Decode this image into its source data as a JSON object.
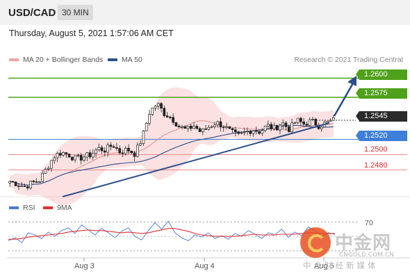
{
  "header": {
    "pair": "USD/CAD",
    "timeframe": "30 MIN",
    "datetime": "Thursday, August 5, 2021 1:57:06 AM CET"
  },
  "legend": {
    "bollinger_label": "MA 20 + Bollinger Bands",
    "ma50_label": "MA 50",
    "credit": "Research © 2021 Trading Central"
  },
  "colors": {
    "green_level": "#4fa11a",
    "blue_level": "#3d7fd9",
    "red_level": "#e88a8a",
    "bollinger": "#f3a3a3",
    "ma50": "#2c4f8a",
    "trendline": "#2c4f8a",
    "rsi": "#4a78d8",
    "rsi_ma": "#e03030"
  },
  "chart_data": [
    {
      "type": "candlestick",
      "instrument": "USD/CAD",
      "timeframe": "30 MIN",
      "x_tick_labels": [
        "Aug 3",
        "Aug 4",
        "Aug 5"
      ],
      "levels": [
        {
          "value": 1.26,
          "label": "1.2600",
          "kind": "target"
        },
        {
          "value": 1.2575,
          "label": "1.2575",
          "kind": "target"
        },
        {
          "value": 1.2545,
          "label": "1.2545",
          "kind": "current"
        },
        {
          "value": 1.252,
          "label": "1.2520",
          "kind": "pivot"
        },
        {
          "value": 1.25,
          "label": "1.2500",
          "kind": "support"
        },
        {
          "value": 1.248,
          "label": "1.2480",
          "kind": "support"
        }
      ],
      "ylim": [
        1.2445,
        1.2615
      ],
      "close_path": [
        1.2465,
        1.2462,
        1.2458,
        1.2463,
        1.2466,
        1.2482,
        1.2498,
        1.2503,
        1.25,
        1.2494,
        1.2497,
        1.25,
        1.2508,
        1.2506,
        1.2513,
        1.2503,
        1.2507,
        1.2501,
        1.2522,
        1.2556,
        1.2567,
        1.2554,
        1.2548,
        1.2537,
        1.2532,
        1.2538,
        1.2529,
        1.2536,
        1.2542,
        1.2538,
        1.253,
        1.2524,
        1.2529,
        1.2533,
        1.253,
        1.2538,
        1.2534,
        1.2542,
        1.2533,
        1.2545,
        1.254,
        1.2544,
        1.2538,
        1.2541,
        1.2545
      ],
      "indicators": [
        "MA 20 + Bollinger Bands",
        "MA 50"
      ]
    },
    {
      "type": "line",
      "title": "RSI",
      "series": [
        {
          "name": "RSI",
          "values": [
            44,
            48,
            41,
            55,
            52,
            47,
            56,
            50,
            58,
            62,
            54,
            66,
            59,
            52,
            61,
            55,
            48,
            57,
            62,
            50,
            45,
            58,
            69,
            60,
            71,
            55,
            48,
            44,
            52,
            49,
            55,
            47,
            51,
            46,
            54,
            50,
            58,
            53,
            47,
            55,
            52,
            60,
            49,
            56,
            51,
            63,
            58,
            50,
            55,
            53
          ]
        },
        {
          "name": "9MA",
          "values": [
            46,
            46,
            47,
            49,
            50,
            51,
            52,
            53,
            54,
            56,
            57,
            58,
            59,
            58,
            58,
            57,
            56,
            55,
            56,
            55,
            54,
            55,
            57,
            59,
            61,
            61,
            59,
            57,
            54,
            52,
            51,
            50,
            50,
            50,
            50,
            51,
            52,
            53,
            52,
            52,
            52,
            53,
            53,
            53,
            54,
            55,
            55,
            54,
            54,
            54
          ]
        }
      ],
      "ylim": [
        25,
        80
      ],
      "reference_lines": [
        70
      ],
      "tick_label": "70"
    }
  ]
}
